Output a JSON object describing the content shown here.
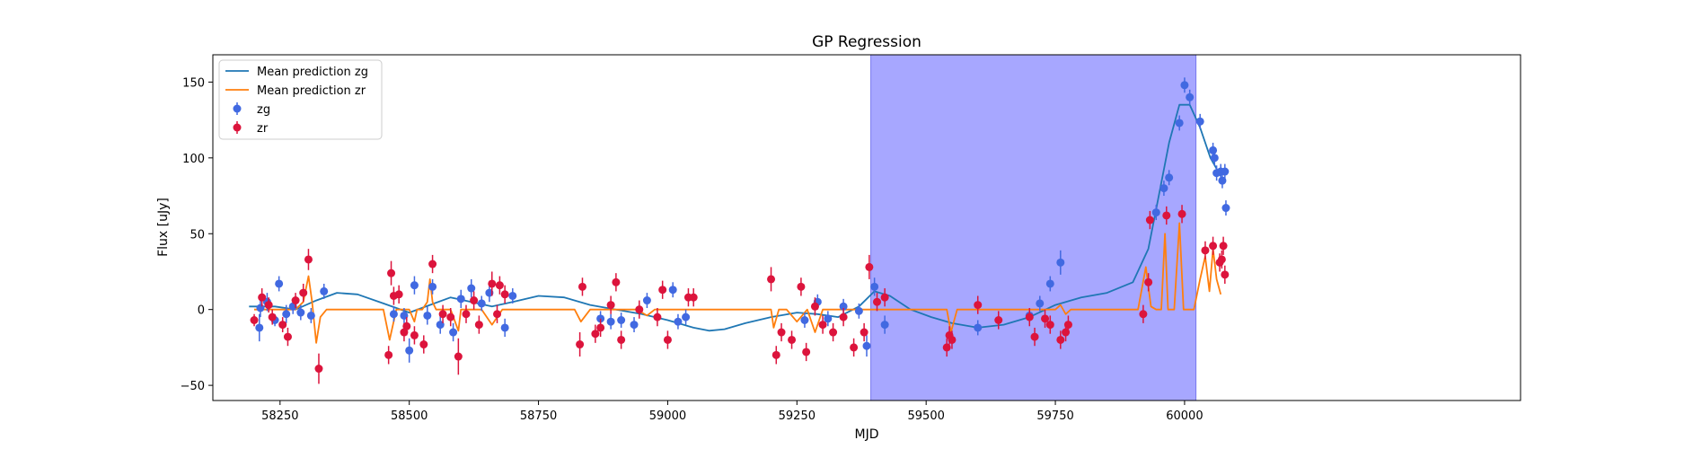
{
  "chart_data": {
    "type": "line",
    "title": "GP Regression",
    "xlabel": "MJD",
    "ylabel": "Flux [uJy]",
    "xlim": [
      58120,
      60650
    ],
    "ylim": [
      -60,
      168
    ],
    "xticks": [
      58250,
      58500,
      58750,
      59000,
      59250,
      59500,
      59750,
      60000
    ],
    "yticks": [
      -50,
      0,
      50,
      100,
      150
    ],
    "grid": false,
    "legend_location": "upper left",
    "shaded_region": {
      "x_start": 59393,
      "x_end": 60022,
      "color": "#a7a7ff"
    },
    "colors": {
      "mean_zg": "#1f77b4",
      "mean_zr": "#ff7f0e",
      "zg": "#4169e1",
      "zr": "#dc143c"
    },
    "legend": [
      {
        "label": "Mean prediction zg",
        "kind": "line",
        "series": "mean_zg"
      },
      {
        "label": "Mean prediction zr",
        "kind": "line",
        "series": "mean_zr"
      },
      {
        "label": "zg",
        "kind": "marker",
        "series": "zg"
      },
      {
        "label": "zr",
        "kind": "marker",
        "series": "zr"
      }
    ],
    "series": [
      {
        "name": "Mean prediction zg",
        "key": "mean_zg",
        "kind": "line",
        "x": [
          58190,
          58240,
          58280,
          58320,
          58360,
          58400,
          58450,
          58500,
          58540,
          58580,
          58620,
          58660,
          58700,
          58750,
          58800,
          58850,
          58900,
          58950,
          59000,
          59050,
          59080,
          59110,
          59150,
          59200,
          59250,
          59290,
          59330,
          59370,
          59400,
          59430,
          59470,
          59510,
          59550,
          59600,
          59650,
          59700,
          59750,
          59800,
          59850,
          59900,
          59930,
          59950,
          59970,
          59990,
          60010,
          60030,
          60050,
          60070
        ],
        "y": [
          2,
          2,
          0,
          6,
          11,
          10,
          4,
          -2,
          3,
          8,
          5,
          2,
          5,
          9,
          8,
          3,
          0,
          -3,
          -7,
          -12,
          -14,
          -13,
          -9,
          -5,
          -2,
          -3,
          -5,
          2,
          12,
          9,
          0,
          -5,
          -9,
          -12,
          -10,
          -5,
          3,
          8,
          11,
          18,
          40,
          75,
          110,
          135,
          135,
          120,
          100,
          88
        ]
      },
      {
        "name": "Mean prediction zr",
        "key": "mean_zr",
        "kind": "line",
        "x": [
          58200,
          58280,
          58295,
          58305,
          58312,
          58320,
          58328,
          58340,
          58400,
          58450,
          58462,
          58475,
          58500,
          58510,
          58515,
          58525,
          58535,
          58540,
          58545,
          58552,
          58580,
          58595,
          58600,
          58640,
          58660,
          58680,
          58700,
          58800,
          58820,
          58832,
          58850,
          58870,
          58900,
          58940,
          58960,
          58975,
          58990,
          59050,
          59180,
          59200,
          59205,
          59215,
          59230,
          59250,
          59270,
          59285,
          59300,
          59400,
          59530,
          59540,
          59548,
          59560,
          59590,
          59600,
          59610,
          59640,
          59700,
          59750,
          59760,
          59770,
          59780,
          59900,
          59910,
          59925,
          59935,
          59945,
          59955,
          59962,
          59968,
          59975,
          59980,
          59990,
          59998,
          60008,
          60018,
          60030,
          60040,
          60048,
          60055,
          60062,
          60070
        ],
        "y": [
          0,
          0,
          5,
          22,
          5,
          -22,
          -5,
          0,
          0,
          0,
          -20,
          0,
          0,
          -8,
          0,
          0,
          5,
          20,
          5,
          0,
          0,
          -14,
          0,
          0,
          -10,
          0,
          0,
          0,
          0,
          -8,
          0,
          0,
          0,
          0,
          -4,
          0,
          0,
          0,
          0,
          0,
          -12,
          0,
          0,
          -8,
          0,
          -15,
          0,
          0,
          0,
          0,
          -15,
          0,
          0,
          0,
          0,
          0,
          0,
          0,
          3,
          -3,
          0,
          0,
          0,
          28,
          2,
          0,
          0,
          50,
          0,
          0,
          0,
          57,
          0,
          0,
          0,
          20,
          35,
          12,
          40,
          20,
          10
        ]
      },
      {
        "name": "zg",
        "key": "zg",
        "kind": "marker",
        "points": [
          [
            58210,
            -12,
            9
          ],
          [
            58212,
            1,
            6
          ],
          [
            58225,
            5,
            6
          ],
          [
            58240,
            -7,
            4
          ],
          [
            58248,
            17,
            5
          ],
          [
            58262,
            -3,
            6
          ],
          [
            58275,
            2,
            5
          ],
          [
            58290,
            -2,
            5
          ],
          [
            58310,
            -4,
            5
          ],
          [
            58335,
            12,
            5
          ],
          [
            58470,
            -3,
            5
          ],
          [
            58490,
            -4,
            5
          ],
          [
            58500,
            -27,
            8
          ],
          [
            58510,
            16,
            6
          ],
          [
            58535,
            -4,
            6
          ],
          [
            58545,
            15,
            5
          ],
          [
            58560,
            -10,
            6
          ],
          [
            58585,
            -15,
            6
          ],
          [
            58600,
            7,
            6
          ],
          [
            58620,
            14,
            6
          ],
          [
            58640,
            4,
            5
          ],
          [
            58655,
            11,
            6
          ],
          [
            58685,
            -12,
            6
          ],
          [
            58700,
            9,
            5
          ],
          [
            58870,
            -6,
            5
          ],
          [
            58890,
            -8,
            5
          ],
          [
            58910,
            -7,
            5
          ],
          [
            58935,
            -10,
            5
          ],
          [
            58960,
            6,
            5
          ],
          [
            59010,
            13,
            5
          ],
          [
            59020,
            -8,
            5
          ],
          [
            59035,
            -5,
            5
          ],
          [
            59265,
            -7,
            5
          ],
          [
            59290,
            5,
            5
          ],
          [
            59310,
            -6,
            5
          ],
          [
            59340,
            2,
            5
          ],
          [
            59370,
            -1,
            5
          ],
          [
            59385,
            -24,
            7
          ],
          [
            59400,
            15,
            6
          ],
          [
            59420,
            -10,
            6
          ],
          [
            59600,
            -12,
            5
          ],
          [
            59700,
            -4,
            5
          ],
          [
            59720,
            4,
            5
          ],
          [
            59740,
            17,
            5
          ],
          [
            59760,
            31,
            8
          ],
          [
            59945,
            64,
            5
          ],
          [
            59960,
            80,
            5
          ],
          [
            59970,
            87,
            5
          ],
          [
            59990,
            123,
            5
          ],
          [
            60000,
            148,
            5
          ],
          [
            60010,
            140,
            5
          ],
          [
            60030,
            124,
            5
          ],
          [
            60055,
            105,
            5
          ],
          [
            60058,
            100,
            5
          ],
          [
            60062,
            90,
            5
          ],
          [
            60070,
            91,
            5
          ],
          [
            60073,
            85,
            5
          ],
          [
            60078,
            91,
            5
          ],
          [
            60080,
            67,
            5
          ]
        ]
      },
      {
        "name": "zr",
        "key": "zr",
        "kind": "marker",
        "points": [
          [
            58200,
            -7,
            4
          ],
          [
            58215,
            8,
            6
          ],
          [
            58228,
            3,
            5
          ],
          [
            58235,
            -5,
            5
          ],
          [
            58255,
            -10,
            5
          ],
          [
            58265,
            -18,
            6
          ],
          [
            58280,
            6,
            5
          ],
          [
            58295,
            11,
            6
          ],
          [
            58305,
            33,
            7
          ],
          [
            58325,
            -39,
            10
          ],
          [
            58460,
            -30,
            6
          ],
          [
            58465,
            24,
            8
          ],
          [
            58470,
            9,
            6
          ],
          [
            58480,
            10,
            6
          ],
          [
            58490,
            -15,
            6
          ],
          [
            58495,
            -11,
            6
          ],
          [
            58510,
            -17,
            6
          ],
          [
            58528,
            -23,
            6
          ],
          [
            58545,
            30,
            6
          ],
          [
            58565,
            -3,
            6
          ],
          [
            58580,
            -5,
            6
          ],
          [
            58595,
            -31,
            12
          ],
          [
            58610,
            -3,
            6
          ],
          [
            58625,
            6,
            6
          ],
          [
            58635,
            -10,
            6
          ],
          [
            58660,
            17,
            8
          ],
          [
            58670,
            -3,
            6
          ],
          [
            58675,
            16,
            6
          ],
          [
            58685,
            10,
            6
          ],
          [
            58830,
            -23,
            8
          ],
          [
            58835,
            15,
            6
          ],
          [
            58860,
            -16,
            6
          ],
          [
            58870,
            -12,
            6
          ],
          [
            58890,
            3,
            6
          ],
          [
            58900,
            18,
            6
          ],
          [
            58910,
            -20,
            6
          ],
          [
            58945,
            0,
            6
          ],
          [
            58980,
            -5,
            6
          ],
          [
            58990,
            13,
            6
          ],
          [
            59000,
            -20,
            6
          ],
          [
            59040,
            8,
            6
          ],
          [
            59050,
            8,
            6
          ],
          [
            59200,
            20,
            8
          ],
          [
            59210,
            -30,
            6
          ],
          [
            59220,
            -15,
            6
          ],
          [
            59240,
            -20,
            6
          ],
          [
            59258,
            15,
            6
          ],
          [
            59268,
            -28,
            6
          ],
          [
            59285,
            2,
            6
          ],
          [
            59300,
            -10,
            6
          ],
          [
            59320,
            -15,
            6
          ],
          [
            59340,
            -5,
            6
          ],
          [
            59360,
            -25,
            6
          ],
          [
            59380,
            -15,
            6
          ],
          [
            59390,
            28,
            8
          ],
          [
            59405,
            5,
            6
          ],
          [
            59420,
            8,
            6
          ],
          [
            59540,
            -25,
            6
          ],
          [
            59545,
            -17,
            6
          ],
          [
            59550,
            -20,
            6
          ],
          [
            59600,
            3,
            6
          ],
          [
            59640,
            -7,
            6
          ],
          [
            59700,
            -5,
            6
          ],
          [
            59710,
            -18,
            6
          ],
          [
            59730,
            -6,
            6
          ],
          [
            59740,
            -10,
            6
          ],
          [
            59760,
            -20,
            6
          ],
          [
            59770,
            -15,
            6
          ],
          [
            59775,
            -10,
            6
          ],
          [
            59920,
            -3,
            6
          ],
          [
            59930,
            18,
            6
          ],
          [
            59933,
            59,
            6
          ],
          [
            59965,
            62,
            6
          ],
          [
            59995,
            63,
            6
          ],
          [
            60040,
            39,
            6
          ],
          [
            60055,
            42,
            6
          ],
          [
            60068,
            31,
            6
          ],
          [
            60072,
            33,
            6
          ],
          [
            60075,
            42,
            6
          ],
          [
            60078,
            23,
            6
          ]
        ]
      }
    ]
  }
}
